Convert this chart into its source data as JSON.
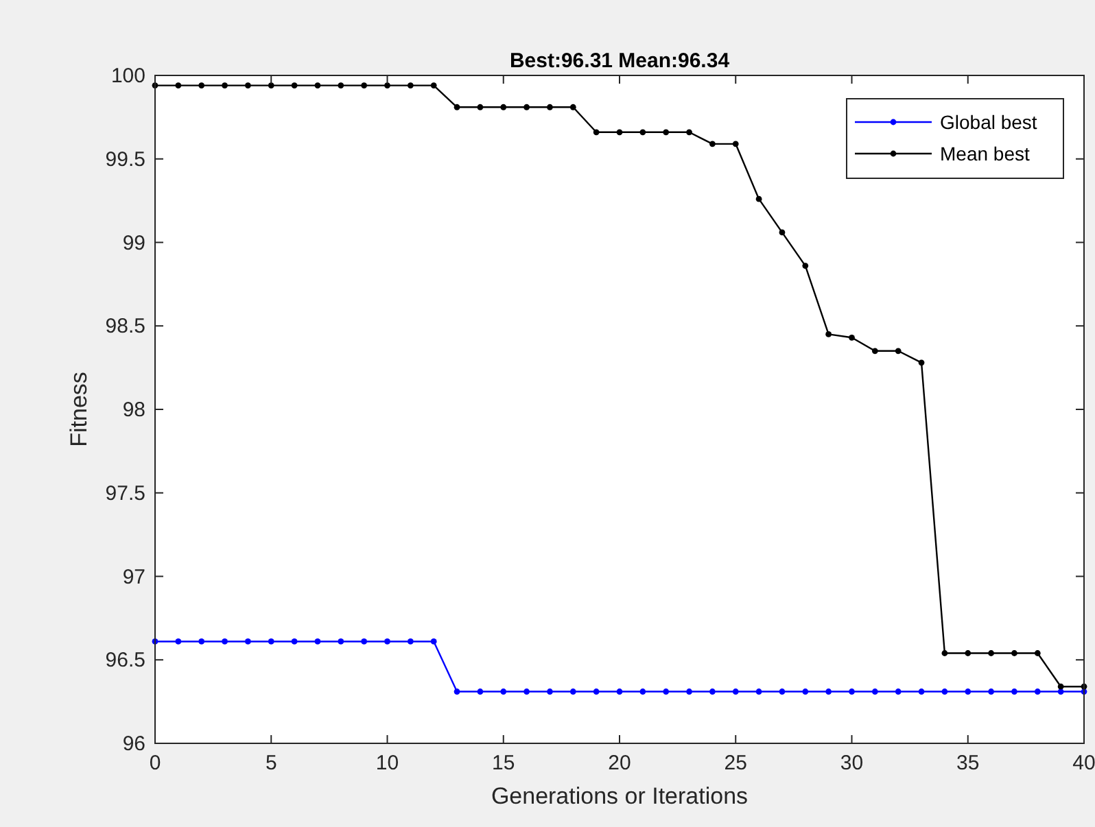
{
  "chart_data": {
    "type": "line",
    "title": "Best:96.31 Mean:96.34",
    "xlabel": "Generations or Iterations",
    "ylabel": "Fitness",
    "x": [
      0,
      1,
      2,
      3,
      4,
      5,
      6,
      7,
      8,
      9,
      10,
      11,
      12,
      13,
      14,
      15,
      16,
      17,
      18,
      19,
      20,
      21,
      22,
      23,
      24,
      25,
      26,
      27,
      28,
      29,
      30,
      31,
      32,
      33,
      34,
      35,
      36,
      37,
      38,
      39,
      40
    ],
    "series": [
      {
        "name": "Global best",
        "color": "#0000ff",
        "values": [
          96.61,
          96.61,
          96.61,
          96.61,
          96.61,
          96.61,
          96.61,
          96.61,
          96.61,
          96.61,
          96.61,
          96.61,
          96.61,
          96.31,
          96.31,
          96.31,
          96.31,
          96.31,
          96.31,
          96.31,
          96.31,
          96.31,
          96.31,
          96.31,
          96.31,
          96.31,
          96.31,
          96.31,
          96.31,
          96.31,
          96.31,
          96.31,
          96.31,
          96.31,
          96.31,
          96.31,
          96.31,
          96.31,
          96.31,
          96.31,
          96.31
        ]
      },
      {
        "name": "Mean best",
        "color": "#000000",
        "values": [
          99.94,
          99.94,
          99.94,
          99.94,
          99.94,
          99.94,
          99.94,
          99.94,
          99.94,
          99.94,
          99.94,
          99.94,
          99.94,
          99.81,
          99.81,
          99.81,
          99.81,
          99.81,
          99.81,
          99.66,
          99.66,
          99.66,
          99.66,
          99.66,
          99.59,
          99.59,
          99.26,
          99.06,
          98.86,
          98.45,
          98.43,
          98.35,
          98.35,
          98.28,
          96.54,
          96.54,
          96.54,
          96.54,
          96.54,
          96.34,
          96.34
        ]
      }
    ],
    "xlim": [
      0,
      40
    ],
    "xticks": [
      0,
      5,
      10,
      15,
      20,
      25,
      30,
      35,
      40
    ],
    "ylim": [
      96,
      100
    ],
    "yticks": [
      96,
      96.5,
      97,
      97.5,
      98,
      98.5,
      99,
      99.5,
      100
    ],
    "grid": false,
    "legend": "top right",
    "marker": "circle",
    "line_style": "solid"
  }
}
